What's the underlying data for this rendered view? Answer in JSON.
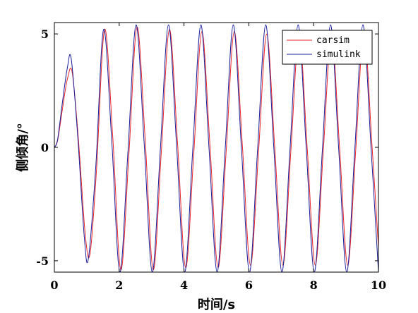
{
  "chart_data": {
    "type": "line",
    "title": "",
    "xlabel": "时间/s",
    "ylabel": "侧倾角/°",
    "xlim": [
      0,
      10
    ],
    "ylim": [
      -5.5,
      5.5
    ],
    "x_ticks": [
      0,
      2,
      4,
      6,
      8,
      10
    ],
    "x_tick_labels": [
      "0",
      "2",
      "4",
      "6",
      "8",
      "10"
    ],
    "y_ticks": [
      -5,
      0,
      5
    ],
    "y_tick_labels": [
      "-5",
      "0",
      "5"
    ],
    "grid": false,
    "legend": {
      "position": "top-right",
      "entries": [
        "carsim",
        "simulink"
      ]
    },
    "series": [
      {
        "name": "carsim",
        "color": "#e8272b",
        "x": [
          0,
          0.1,
          0.25,
          0.4,
          0.55,
          0.75,
          0.95,
          1.1,
          1.3,
          1.55,
          1.8,
          2.05,
          2.3,
          2.55,
          2.8,
          3.05,
          3.3,
          3.55,
          3.8,
          4.05,
          4.3,
          4.55,
          4.8,
          5.05,
          5.3,
          5.55,
          5.8,
          6.05,
          6.3,
          6.55,
          6.8,
          7.05,
          7.3,
          7.55,
          7.8,
          8.05,
          8.3,
          8.55,
          8.8,
          9.05,
          9.3,
          9.55,
          9.8,
          10.0
        ],
        "y": [
          0,
          0.3,
          1.7,
          3.0,
          3.3,
          0.2,
          -3.8,
          -4.7,
          -1.0,
          5.2,
          0.5,
          -5.4,
          -0.3,
          5.3,
          0.4,
          -5.4,
          -0.2,
          5.2,
          0.2,
          -5.3,
          -0.3,
          5.1,
          0.1,
          -5.3,
          -0.2,
          5.1,
          0.1,
          -5.2,
          -0.2,
          5.0,
          0.0,
          -5.2,
          -0.1,
          5.0,
          0.0,
          -5.2,
          -0.1,
          5.0,
          0.0,
          -5.2,
          -0.1,
          5.1,
          0.1,
          -4.4
        ]
      },
      {
        "name": "simulink",
        "color": "#1b1f9c",
        "x": [
          0,
          0.1,
          0.25,
          0.4,
          0.52,
          0.72,
          0.92,
          1.05,
          1.28,
          1.52,
          1.77,
          2.02,
          2.27,
          2.52,
          2.77,
          3.02,
          3.27,
          3.52,
          3.77,
          4.02,
          4.27,
          4.52,
          4.77,
          5.02,
          5.27,
          5.52,
          5.77,
          6.02,
          6.27,
          6.52,
          6.77,
          7.02,
          7.27,
          7.52,
          7.77,
          8.02,
          8.27,
          8.52,
          8.77,
          9.02,
          9.27,
          9.52,
          9.77,
          10.0
        ],
        "y": [
          0,
          0.35,
          2.0,
          3.5,
          3.9,
          0.5,
          -3.9,
          -4.9,
          -0.8,
          5.2,
          0.3,
          -5.5,
          -0.2,
          5.4,
          0.2,
          -5.5,
          -0.1,
          5.4,
          0.1,
          -5.5,
          -0.1,
          5.4,
          0.0,
          -5.5,
          -0.1,
          5.4,
          0.0,
          -5.5,
          -0.1,
          5.4,
          0.0,
          -5.5,
          -0.1,
          5.4,
          0.0,
          -5.5,
          -0.1,
          5.4,
          0.0,
          -5.5,
          -0.1,
          5.4,
          0.0,
          -5.5
        ]
      }
    ]
  }
}
